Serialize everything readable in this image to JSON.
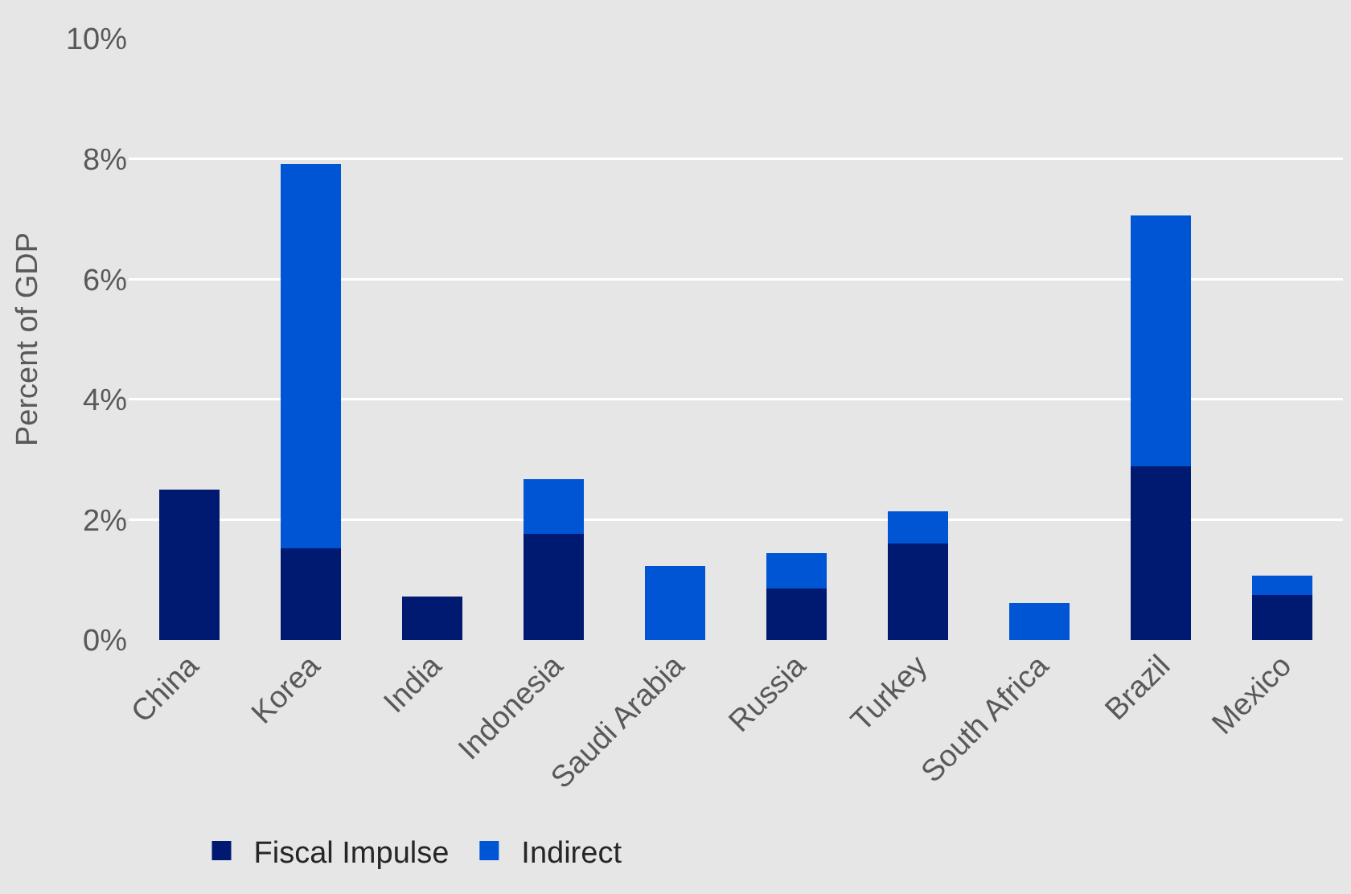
{
  "chart_data": {
    "type": "bar",
    "stacked": true,
    "ylabel": "Percent of GDP",
    "categories": [
      "China",
      "Korea",
      "India",
      "Indonesia",
      "Saudi Arabia",
      "Russia",
      "Turkey",
      "South Africa",
      "Brazil",
      "Mexico"
    ],
    "series": [
      {
        "name": "Fiscal Impulse",
        "color": "#001a72",
        "values": [
          2.5,
          1.52,
          0.72,
          1.76,
          null,
          0.86,
          1.6,
          null,
          2.89,
          0.75
        ]
      },
      {
        "name": "Indirect",
        "color": "#0055d4",
        "values": [
          null,
          6.39,
          null,
          0.91,
          1.23,
          0.58,
          0.54,
          0.61,
          4.17,
          0.32
        ]
      }
    ],
    "ylim": [
      0,
      10
    ],
    "yticks": [
      {
        "value": 0,
        "label": "0%"
      },
      {
        "value": 2,
        "label": "2%"
      },
      {
        "value": 4,
        "label": "4%"
      },
      {
        "value": 6,
        "label": "6%"
      },
      {
        "value": 8,
        "label": "8%"
      },
      {
        "value": 10,
        "label": "10%"
      }
    ],
    "grid": "y",
    "legend": "bottom left"
  }
}
